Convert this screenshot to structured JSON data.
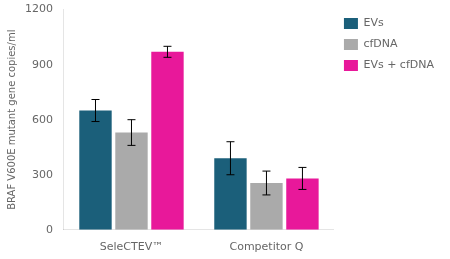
{
  "chart_data": {
    "type": "bar",
    "categories": [
      "SeleCTEV™",
      "Competitor Q"
    ],
    "series": [
      {
        "name": "EVs",
        "color": "#1b5f7a",
        "values": [
          650,
          390
        ],
        "errors": [
          60,
          90
        ]
      },
      {
        "name": "cfDNA",
        "color": "#aaaaaa",
        "values": [
          530,
          255
        ],
        "errors": [
          70,
          65
        ]
      },
      {
        "name": "EVs + cfDNA",
        "color": "#e8189a",
        "values": [
          970,
          280
        ],
        "errors": [
          30,
          60
        ]
      }
    ],
    "ylabel": "BRAF V600E mutant gene copies/ml",
    "ylim": [
      0,
      1200
    ],
    "yticks": [
      0,
      300,
      600,
      900,
      1200
    ],
    "grid": false,
    "legend": "right"
  }
}
